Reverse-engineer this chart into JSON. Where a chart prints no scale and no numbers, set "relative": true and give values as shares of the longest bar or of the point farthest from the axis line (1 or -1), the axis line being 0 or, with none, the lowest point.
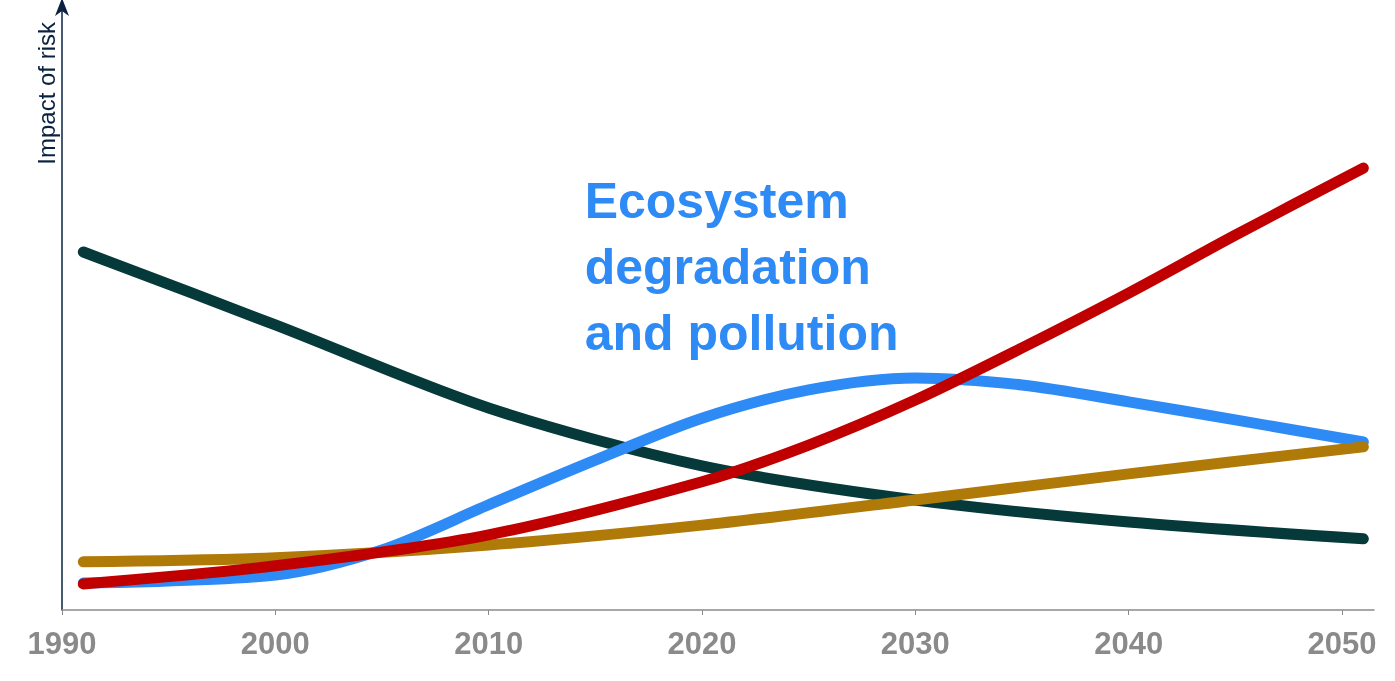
{
  "chart_data": {
    "type": "line",
    "relative": true,
    "ylabel": "Impact of risk",
    "xlim": [
      1990,
      2051.5
    ],
    "xticks": [
      1990,
      2000,
      2010,
      2020,
      2030,
      2040,
      2050
    ],
    "grid": false,
    "legend": false,
    "marker": "none",
    "line_style": "solid",
    "series": [
      {
        "color": "#06393a",
        "x": [
          1991,
          2000,
          2010,
          2020,
          2030,
          2040,
          2051
        ],
        "values": [
          0.81,
          0.645,
          0.457,
          0.326,
          0.249,
          0.199,
          0.161
        ]
      },
      {
        "name": "Ecosystem degradation and pollution",
        "color": "#2e8af5",
        "x": [
          1991,
          2000,
          2005,
          2010,
          2015,
          2020,
          2025,
          2030,
          2035,
          2040,
          2045,
          2051
        ],
        "values": [
          0.061,
          0.079,
          0.136,
          0.238,
          0.339,
          0.434,
          0.498,
          0.525,
          0.509,
          0.471,
          0.43,
          0.38
        ]
      },
      {
        "color": "#b07a08",
        "x": [
          1991,
          2000,
          2010,
          2020,
          2030,
          2040,
          2051
        ],
        "values": [
          0.109,
          0.118,
          0.147,
          0.192,
          0.249,
          0.308,
          0.369
        ]
      },
      {
        "color": "#c00000",
        "x": [
          1991,
          2000,
          2010,
          2020,
          2025,
          2030,
          2035,
          2040,
          2045,
          2051
        ],
        "values": [
          0.059,
          0.1,
          0.17,
          0.29,
          0.373,
          0.475,
          0.593,
          0.717,
          0.848,
          1
        ]
      }
    ]
  }
}
